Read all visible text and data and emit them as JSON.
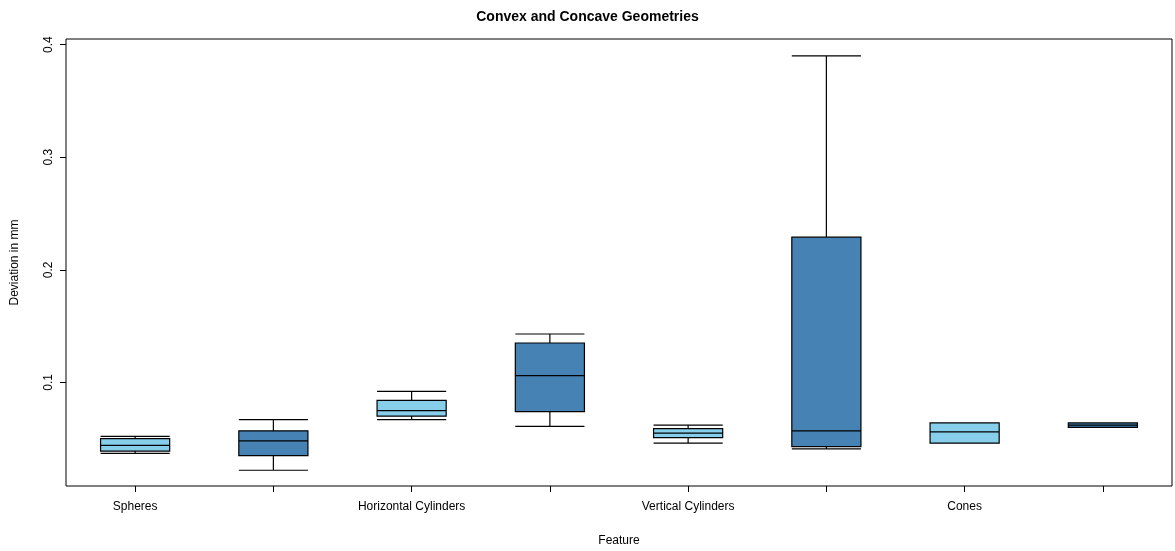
{
  "chart_data": {
    "type": "box",
    "title": "Convex and Concave Geometries",
    "xlabel": "Feature",
    "ylabel": "Deviation in mm",
    "categories": [
      "Spheres",
      null,
      "Horizontal Cylinders",
      null,
      "Vertical Cylinders",
      null,
      "Cones",
      null
    ],
    "colors": [
      "#87ceeb",
      "#4682b4",
      "#87ceeb",
      "#4682b4",
      "#87ceeb",
      "#4682b4",
      "#87ceeb",
      "#4682b4"
    ],
    "boxes": [
      {
        "low": 0.037,
        "q1": 0.039,
        "median": 0.044,
        "q3": 0.05,
        "high": 0.052
      },
      {
        "low": 0.022,
        "q1": 0.035,
        "median": 0.048,
        "q3": 0.057,
        "high": 0.067
      },
      {
        "low": 0.067,
        "q1": 0.07,
        "median": 0.075,
        "q3": 0.084,
        "high": 0.092
      },
      {
        "low": 0.061,
        "q1": 0.074,
        "median": 0.106,
        "q3": 0.135,
        "high": 0.143
      },
      {
        "low": 0.046,
        "q1": 0.051,
        "median": 0.055,
        "q3": 0.059,
        "high": 0.062
      },
      {
        "low": 0.041,
        "q1": 0.043,
        "median": 0.057,
        "q3": 0.229,
        "high": 0.39
      },
      {
        "low": 0.046,
        "q1": 0.046,
        "median": 0.056,
        "q3": 0.064,
        "high": 0.064
      },
      {
        "low": 0.06,
        "q1": 0.06,
        "median": 0.062,
        "q3": 0.064,
        "high": 0.064
      }
    ],
    "ylim": [
      0.008,
      0.405
    ],
    "yticks": [
      0.1,
      0.2,
      0.3,
      0.4
    ],
    "grid": false
  }
}
